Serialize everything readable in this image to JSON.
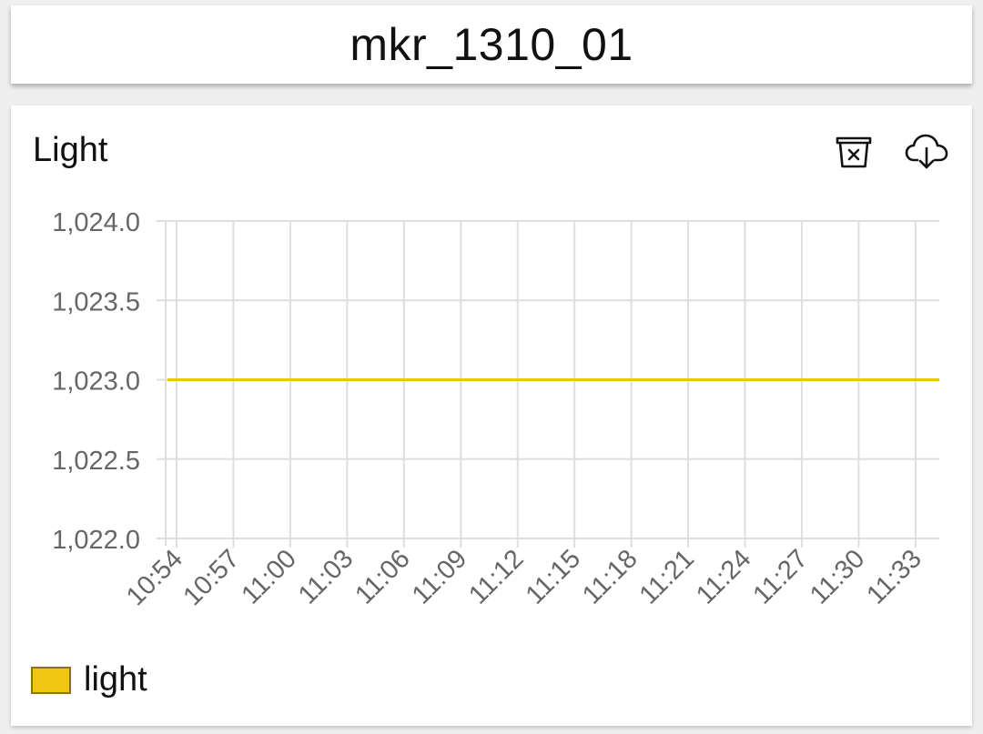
{
  "header": {
    "title": "mkr_1310_01"
  },
  "card": {
    "title": "Light",
    "actions": [
      {
        "name": "clear-icon"
      },
      {
        "name": "cloud-download-icon"
      }
    ]
  },
  "chart_data": {
    "type": "line",
    "title": "Light",
    "xlabel": "",
    "ylabel": "",
    "categories": [
      "10:54",
      "10:57",
      "11:00",
      "11:03",
      "11:06",
      "11:09",
      "11:12",
      "11:15",
      "11:18",
      "11:21",
      "11:24",
      "11:27",
      "11:30",
      "11:33"
    ],
    "yticks": [
      "1,022.0",
      "1,022.5",
      "1,023.0",
      "1,023.5",
      "1,024.0"
    ],
    "ylim": [
      1022.0,
      1024.0
    ],
    "grid": true,
    "legend_position": "bottom-left",
    "series": [
      {
        "name": "light",
        "color": "#e8c800",
        "legend_color": "#f0c814",
        "values": [
          1023,
          1023,
          1023,
          1023,
          1023,
          1023,
          1023,
          1023,
          1023,
          1023,
          1023,
          1023,
          1023,
          1023
        ]
      }
    ]
  },
  "legend": {
    "label": "light"
  }
}
